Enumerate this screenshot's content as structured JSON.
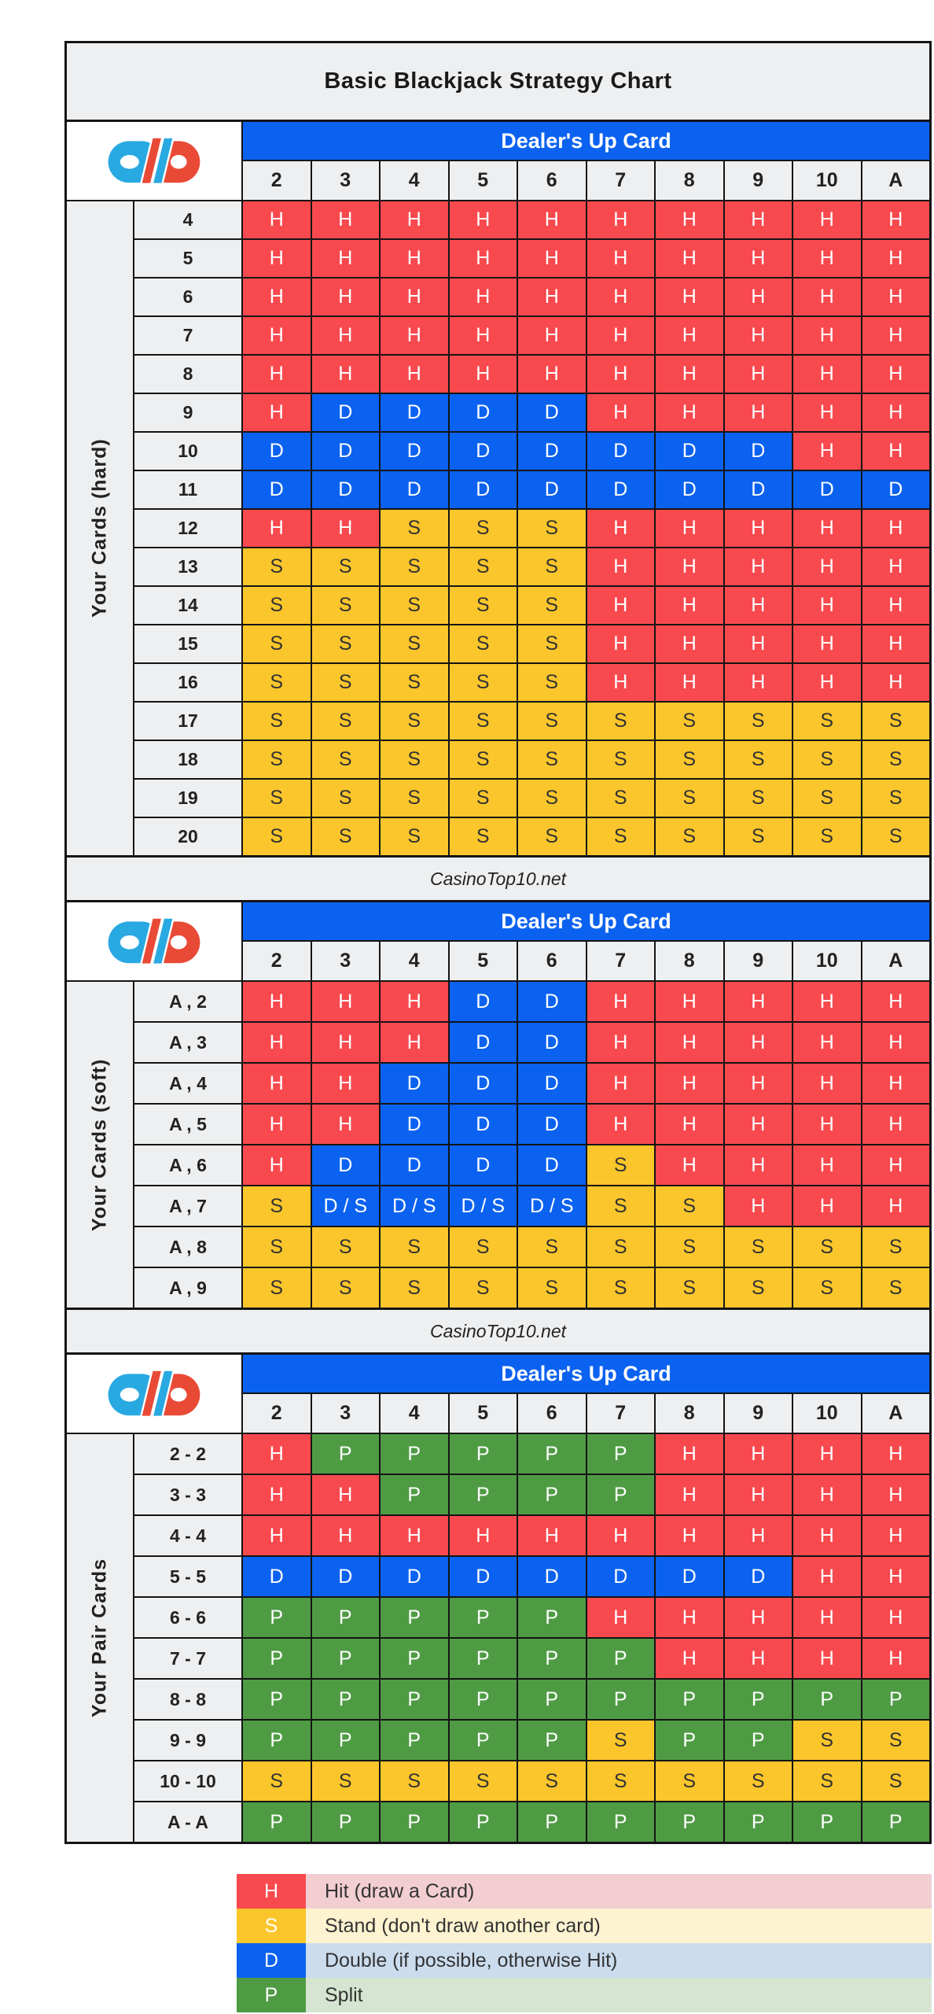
{
  "title": "Basic Blackjack Strategy Chart",
  "dealer_header": "Dealer's Up Card",
  "dealer_cards": [
    "2",
    "3",
    "4",
    "5",
    "6",
    "7",
    "8",
    "9",
    "10",
    "A"
  ],
  "watermark": "CasinoTop10.net",
  "colors": {
    "line": "#141414",
    "panel_gray": "#eeeff0",
    "header_blue": "#0b62f0",
    "hit_red": "#f8494e",
    "stand_yellow": "#fbc62b",
    "double_blue": "#0b62f0",
    "split_green": "#4f9b44",
    "stand_text": "#333333",
    "white_text": "#ffffff",
    "logo_blue": "#29a9e2",
    "logo_red": "#e94a36",
    "legend_tints": {
      "H": "#f2ced3",
      "S": "#fdf3d0",
      "D": "#cbdcee",
      "P": "#d5e5d1"
    }
  },
  "sections": [
    {
      "id": "hard",
      "label": "Your Cards (hard)",
      "rows": [
        {
          "label": "4",
          "actions": [
            "H",
            "H",
            "H",
            "H",
            "H",
            "H",
            "H",
            "H",
            "H",
            "H"
          ]
        },
        {
          "label": "5",
          "actions": [
            "H",
            "H",
            "H",
            "H",
            "H",
            "H",
            "H",
            "H",
            "H",
            "H"
          ]
        },
        {
          "label": "6",
          "actions": [
            "H",
            "H",
            "H",
            "H",
            "H",
            "H",
            "H",
            "H",
            "H",
            "H"
          ]
        },
        {
          "label": "7",
          "actions": [
            "H",
            "H",
            "H",
            "H",
            "H",
            "H",
            "H",
            "H",
            "H",
            "H"
          ]
        },
        {
          "label": "8",
          "actions": [
            "H",
            "H",
            "H",
            "H",
            "H",
            "H",
            "H",
            "H",
            "H",
            "H"
          ]
        },
        {
          "label": "9",
          "actions": [
            "H",
            "D",
            "D",
            "D",
            "D",
            "H",
            "H",
            "H",
            "H",
            "H"
          ]
        },
        {
          "label": "10",
          "actions": [
            "D",
            "D",
            "D",
            "D",
            "D",
            "D",
            "D",
            "D",
            "H",
            "H"
          ]
        },
        {
          "label": "11",
          "actions": [
            "D",
            "D",
            "D",
            "D",
            "D",
            "D",
            "D",
            "D",
            "D",
            "D"
          ]
        },
        {
          "label": "12",
          "actions": [
            "H",
            "H",
            "S",
            "S",
            "S",
            "H",
            "H",
            "H",
            "H",
            "H"
          ]
        },
        {
          "label": "13",
          "actions": [
            "S",
            "S",
            "S",
            "S",
            "S",
            "H",
            "H",
            "H",
            "H",
            "H"
          ]
        },
        {
          "label": "14",
          "actions": [
            "S",
            "S",
            "S",
            "S",
            "S",
            "H",
            "H",
            "H",
            "H",
            "H"
          ]
        },
        {
          "label": "15",
          "actions": [
            "S",
            "S",
            "S",
            "S",
            "S",
            "H",
            "H",
            "H",
            "H",
            "H"
          ]
        },
        {
          "label": "16",
          "actions": [
            "S",
            "S",
            "S",
            "S",
            "S",
            "H",
            "H",
            "H",
            "H",
            "H"
          ]
        },
        {
          "label": "17",
          "actions": [
            "S",
            "S",
            "S",
            "S",
            "S",
            "S",
            "S",
            "S",
            "S",
            "S"
          ]
        },
        {
          "label": "18",
          "actions": [
            "S",
            "S",
            "S",
            "S",
            "S",
            "S",
            "S",
            "S",
            "S",
            "S"
          ]
        },
        {
          "label": "19",
          "actions": [
            "S",
            "S",
            "S",
            "S",
            "S",
            "S",
            "S",
            "S",
            "S",
            "S"
          ]
        },
        {
          "label": "20",
          "actions": [
            "S",
            "S",
            "S",
            "S",
            "S",
            "S",
            "S",
            "S",
            "S",
            "S"
          ]
        }
      ]
    },
    {
      "id": "soft",
      "label": "Your Cards (soft)",
      "rows": [
        {
          "label": "A , 2",
          "actions": [
            "H",
            "H",
            "H",
            "D",
            "D",
            "H",
            "H",
            "H",
            "H",
            "H"
          ]
        },
        {
          "label": "A , 3",
          "actions": [
            "H",
            "H",
            "H",
            "D",
            "D",
            "H",
            "H",
            "H",
            "H",
            "H"
          ]
        },
        {
          "label": "A , 4",
          "actions": [
            "H",
            "H",
            "D",
            "D",
            "D",
            "H",
            "H",
            "H",
            "H",
            "H"
          ]
        },
        {
          "label": "A , 5",
          "actions": [
            "H",
            "H",
            "D",
            "D",
            "D",
            "H",
            "H",
            "H",
            "H",
            "H"
          ]
        },
        {
          "label": "A , 6",
          "actions": [
            "H",
            "D",
            "D",
            "D",
            "D",
            "S",
            "H",
            "H",
            "H",
            "H"
          ]
        },
        {
          "label": "A , 7",
          "actions": [
            "S",
            "D / S",
            "D / S",
            "D / S",
            "D / S",
            "S",
            "S",
            "H",
            "H",
            "H"
          ]
        },
        {
          "label": "A , 8",
          "actions": [
            "S",
            "S",
            "S",
            "S",
            "S",
            "S",
            "S",
            "S",
            "S",
            "S"
          ]
        },
        {
          "label": "A , 9",
          "actions": [
            "S",
            "S",
            "S",
            "S",
            "S",
            "S",
            "S",
            "S",
            "S",
            "S"
          ]
        }
      ]
    },
    {
      "id": "pairs",
      "label": "Your Pair Cards",
      "rows": [
        {
          "label": "2 - 2",
          "actions": [
            "H",
            "P",
            "P",
            "P",
            "P",
            "P",
            "H",
            "H",
            "H",
            "H"
          ]
        },
        {
          "label": "3 - 3",
          "actions": [
            "H",
            "H",
            "P",
            "P",
            "P",
            "P",
            "H",
            "H",
            "H",
            "H"
          ]
        },
        {
          "label": "4 - 4",
          "actions": [
            "H",
            "H",
            "H",
            "H",
            "H",
            "H",
            "H",
            "H",
            "H",
            "H"
          ]
        },
        {
          "label": "5 - 5",
          "actions": [
            "D",
            "D",
            "D",
            "D",
            "D",
            "D",
            "D",
            "D",
            "H",
            "H"
          ]
        },
        {
          "label": "6 - 6",
          "actions": [
            "P",
            "P",
            "P",
            "P",
            "P",
            "H",
            "H",
            "H",
            "H",
            "H"
          ]
        },
        {
          "label": "7 - 7",
          "actions": [
            "P",
            "P",
            "P",
            "P",
            "P",
            "P",
            "H",
            "H",
            "H",
            "H"
          ]
        },
        {
          "label": "8 - 8",
          "actions": [
            "P",
            "P",
            "P",
            "P",
            "P",
            "P",
            "P",
            "P",
            "P",
            "P"
          ]
        },
        {
          "label": "9 - 9",
          "actions": [
            "P",
            "P",
            "P",
            "P",
            "P",
            "S",
            "P",
            "P",
            "S",
            "S"
          ]
        },
        {
          "label": "10 - 10",
          "actions": [
            "S",
            "S",
            "S",
            "S",
            "S",
            "S",
            "S",
            "S",
            "S",
            "S"
          ]
        },
        {
          "label": "A - A",
          "actions": [
            "P",
            "P",
            "P",
            "P",
            "P",
            "P",
            "P",
            "P",
            "P",
            "P"
          ]
        }
      ]
    }
  ],
  "legend": [
    {
      "key": "H",
      "label": "Hit (draw a Card)"
    },
    {
      "key": "S",
      "label": "Stand (don't draw another card)"
    },
    {
      "key": "D",
      "label": "Double (if possible, otherwise Hit)"
    },
    {
      "key": "P",
      "label": "Split"
    }
  ]
}
